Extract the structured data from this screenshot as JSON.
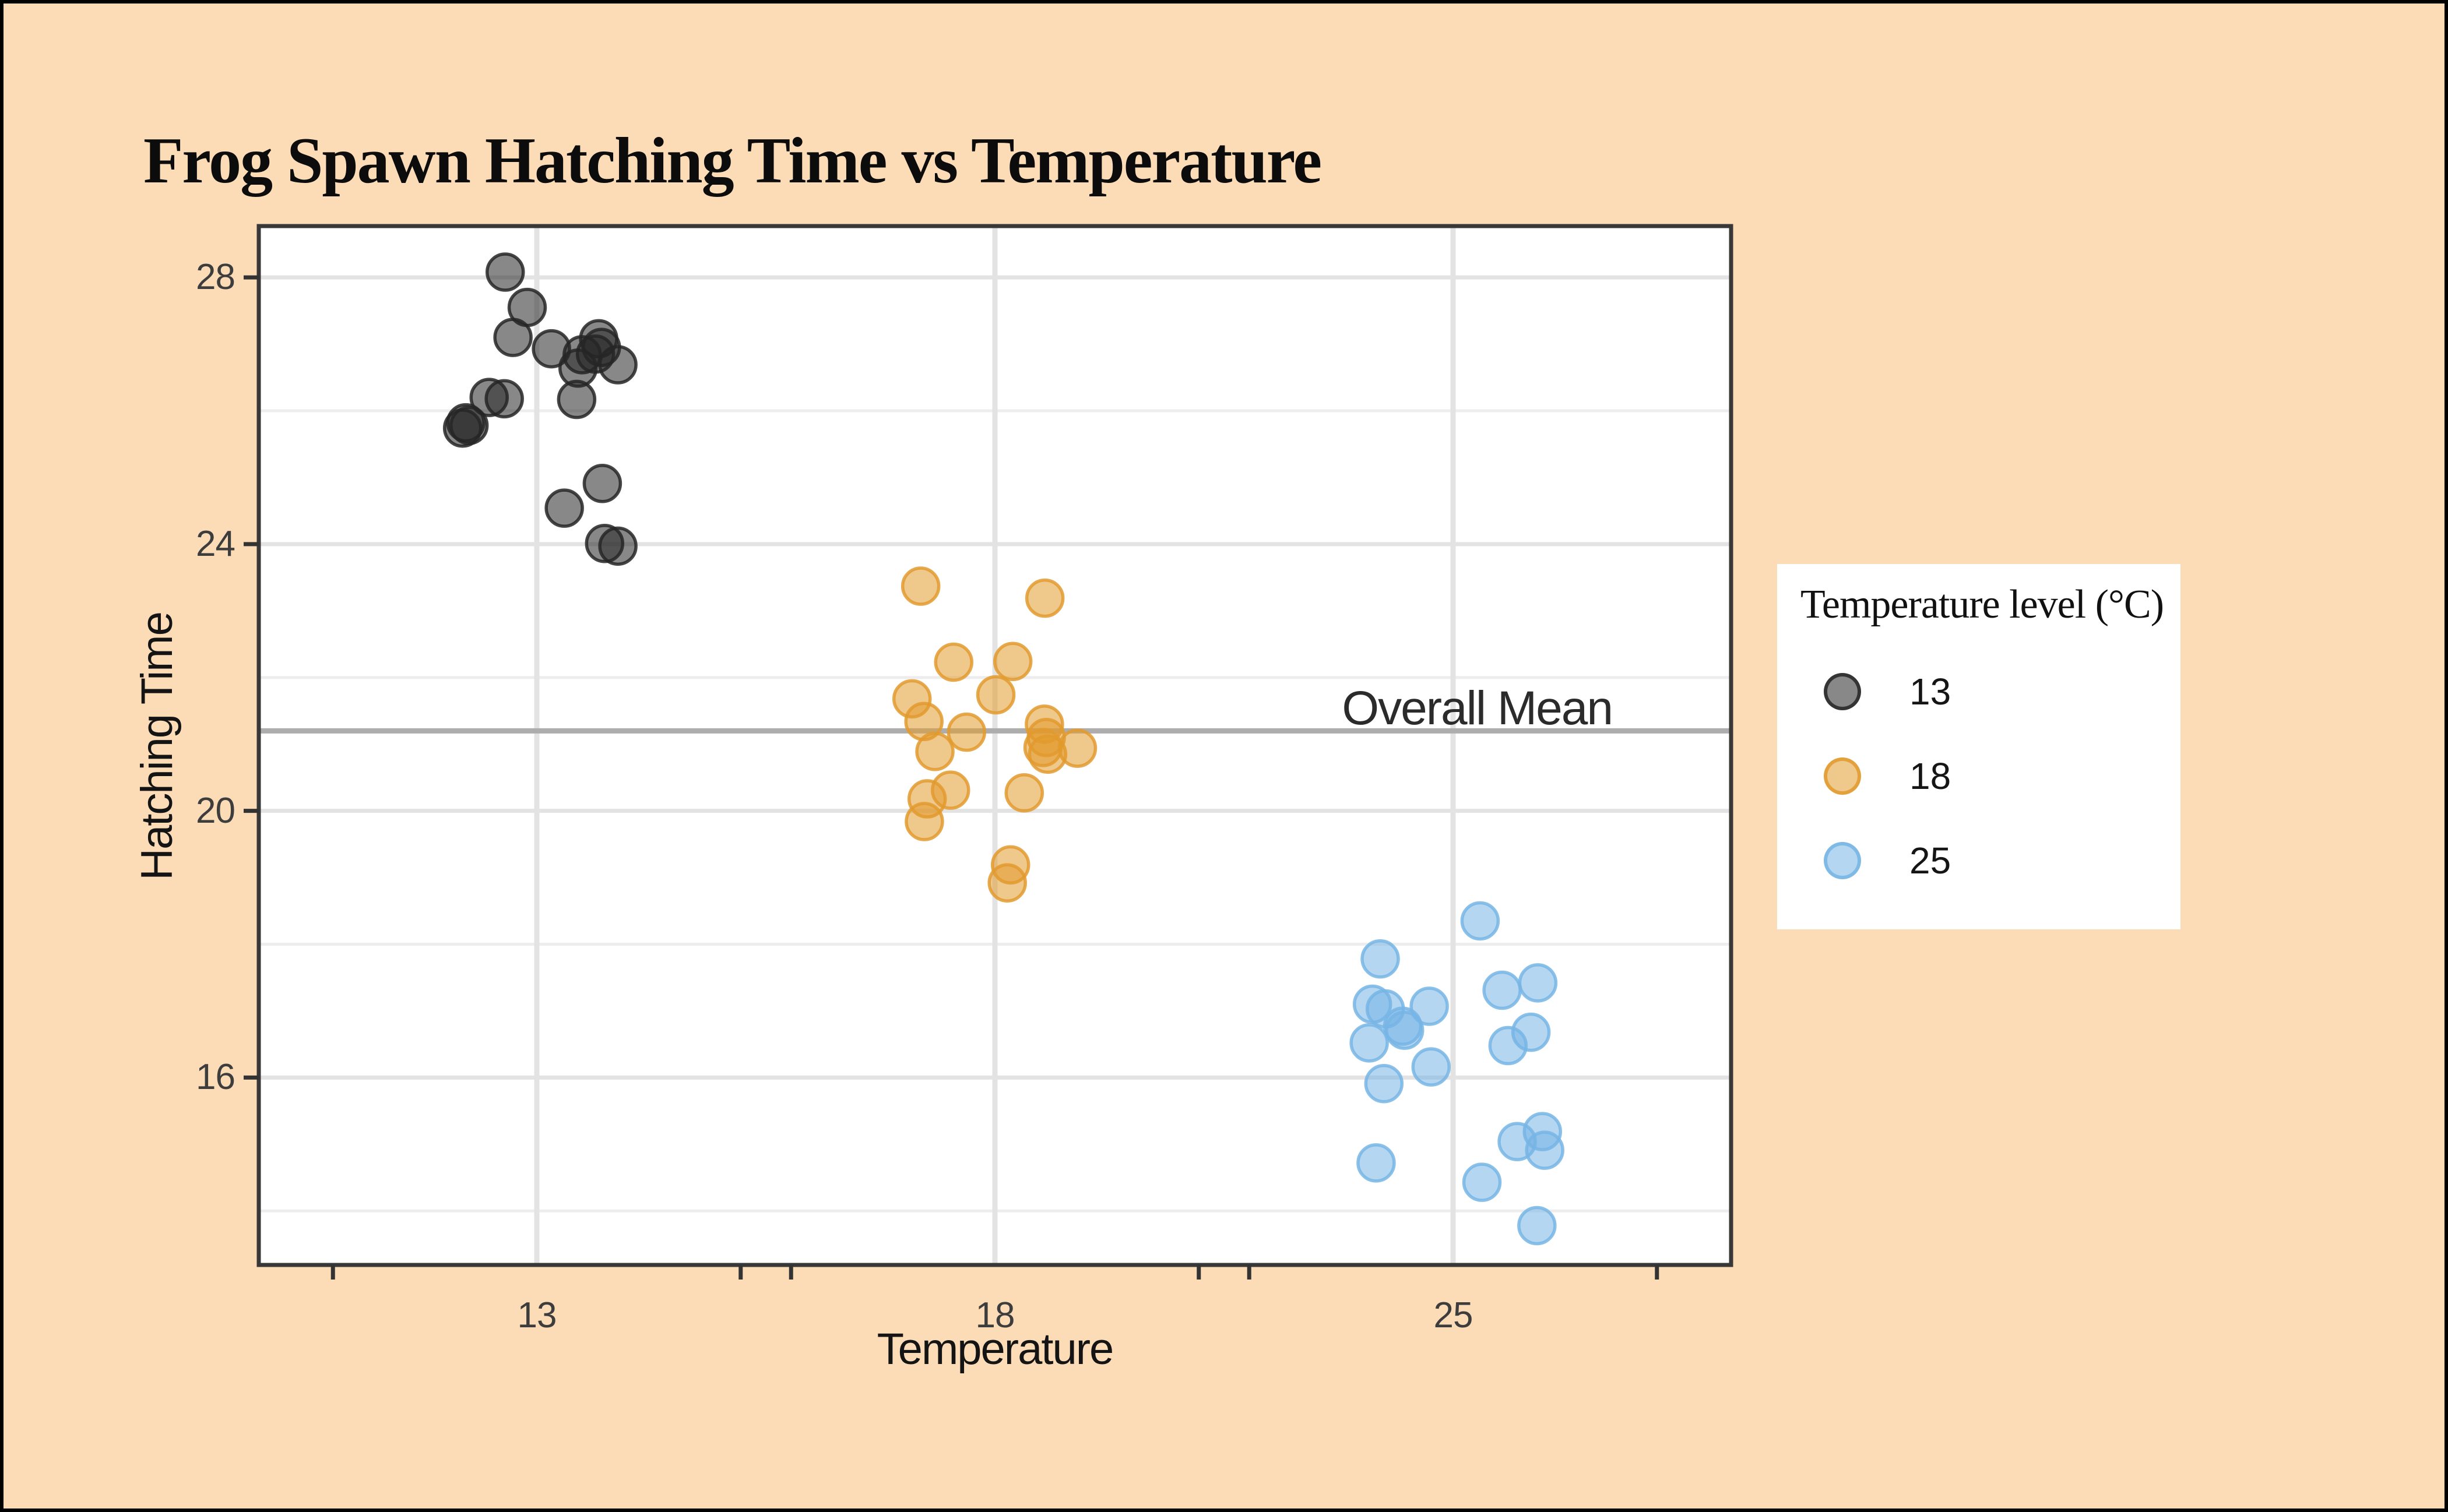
{
  "title": "Frog Spawn Hatching Time vs Temperature",
  "background_color": "#FBDCB6",
  "frame_border_color": "#000000",
  "panel": {
    "background": "#FFFFFF",
    "border_color": "#383838",
    "grid_major_color": "#E3E3E3",
    "grid_minor_color": "#EDEDED",
    "tick_mark_color": "#333333"
  },
  "chart_data": {
    "type": "scatter",
    "title": "Frog Spawn Hatching Time vs Temperature",
    "xlabel": "Temperature",
    "ylabel": "Hatching Time",
    "x_axis": {
      "categories": [
        "13",
        "18",
        "25"
      ],
      "minor_tick_offsets": [
        -0.445,
        0.445
      ]
    },
    "y_axis": {
      "major_ticks": [
        28,
        24,
        20,
        16
      ],
      "minor_gridlines": [
        26,
        22,
        18,
        14
      ],
      "range": [
        13.19,
        28.77
      ]
    },
    "grid": {
      "horizontal_major": true,
      "horizontal_minor": true,
      "vertical_major": true
    },
    "legend_position": "right",
    "mean_line": {
      "value": 21.2,
      "label": "Overall Mean",
      "color": "#ADADAD"
    },
    "point_style": {
      "radius": 31,
      "fill_opacity": 0.55,
      "stroke_opacity": 0.85,
      "stroke_width": 5.5
    },
    "series": [
      {
        "name": "13",
        "color": "#262626",
        "points": [
          [
            28.08,
            -0.069
          ],
          [
            27.55,
            -0.021
          ],
          [
            27.1,
            -0.052
          ],
          [
            26.93,
            0.032
          ],
          [
            27.08,
            0.135
          ],
          [
            26.95,
            0.141
          ],
          [
            26.85,
            0.128
          ],
          [
            26.84,
            0.099
          ],
          [
            26.69,
            0.177
          ],
          [
            26.64,
            0.09
          ],
          [
            26.2,
            -0.104
          ],
          [
            26.18,
            -0.071
          ],
          [
            26.17,
            0.087
          ],
          [
            25.82,
            -0.155
          ],
          [
            25.78,
            -0.148
          ],
          [
            25.74,
            -0.162
          ],
          [
            24.91,
            0.143
          ],
          [
            24.54,
            0.06
          ],
          [
            24.01,
            0.148
          ],
          [
            23.97,
            0.177
          ]
        ]
      },
      {
        "name": "18",
        "color": "#E29A2E",
        "points": [
          [
            23.37,
            -0.162
          ],
          [
            23.19,
            0.109
          ],
          [
            22.24,
            0.039
          ],
          [
            22.23,
            -0.09
          ],
          [
            21.74,
            0.002
          ],
          [
            21.68,
            -0.181
          ],
          [
            21.34,
            -0.155
          ],
          [
            21.3,
            0.108
          ],
          [
            21.18,
            -0.062
          ],
          [
            21.1,
            0.112
          ],
          [
            20.95,
            0.105
          ],
          [
            20.94,
            0.18
          ],
          [
            20.89,
            -0.131
          ],
          [
            20.85,
            0.115
          ],
          [
            20.31,
            -0.097
          ],
          [
            20.27,
            0.064
          ],
          [
            20.18,
            -0.148
          ],
          [
            19.84,
            -0.154
          ],
          [
            19.19,
            0.034
          ],
          [
            18.92,
            0.027
          ]
        ]
      },
      {
        "name": "25",
        "color": "#77B5E5",
        "points": [
          [
            18.35,
            0.059
          ],
          [
            17.78,
            -0.159
          ],
          [
            17.42,
            0.185
          ],
          [
            17.31,
            0.107
          ],
          [
            17.1,
            -0.176
          ],
          [
            17.07,
            -0.052
          ],
          [
            17.03,
            -0.148
          ],
          [
            16.77,
            -0.11
          ],
          [
            16.71,
            -0.106
          ],
          [
            16.68,
            0.17
          ],
          [
            16.52,
            -0.183
          ],
          [
            16.48,
            0.12
          ],
          [
            16.16,
            -0.048
          ],
          [
            15.91,
            -0.151
          ],
          [
            15.19,
            0.195
          ],
          [
            15.04,
            0.14
          ],
          [
            14.91,
            0.2
          ],
          [
            14.72,
            -0.168
          ],
          [
            14.43,
            0.063
          ],
          [
            13.78,
            0.183
          ]
        ]
      }
    ]
  },
  "legend": {
    "title": "Temperature level (°C)",
    "items": [
      {
        "label": "13",
        "color": "#262626"
      },
      {
        "label": "18",
        "color": "#E29A2E"
      },
      {
        "label": "25",
        "color": "#77B5E5"
      }
    ]
  }
}
